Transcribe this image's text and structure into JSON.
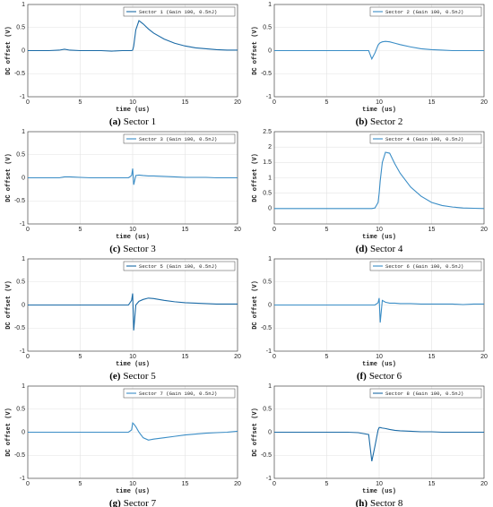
{
  "chart_data": [
    {
      "type": "line",
      "caption_label": "(a)",
      "caption": "Sector 1",
      "x_label": "time (us)",
      "y_label": "DC offset (V)",
      "grid": true,
      "legend": "upper right",
      "xlim": [
        0,
        20
      ],
      "xticks": [
        0,
        5,
        10,
        15,
        20
      ],
      "ylim": [
        -1,
        1
      ],
      "yticks": [
        -1,
        -0.5,
        0,
        0.5,
        1
      ],
      "x": [
        0,
        1,
        2,
        3,
        3.5,
        4,
        5,
        6,
        7,
        8,
        9,
        9.3,
        9.6,
        9.9,
        10,
        10.1,
        10.3,
        10.6,
        11,
        11.5,
        12,
        13,
        14,
        15,
        16,
        17,
        18,
        19,
        20
      ],
      "series": [
        {
          "name": "Sector 1 (Gain 100, 0.5nJ)",
          "color": "#1a6aa6",
          "values": [
            0,
            0,
            0,
            0.01,
            0.03,
            0.01,
            0,
            0,
            0,
            -0.01,
            0,
            0,
            0,
            0,
            0.01,
            0.1,
            0.45,
            0.65,
            0.58,
            0.47,
            0.38,
            0.25,
            0.16,
            0.1,
            0.06,
            0.04,
            0.02,
            0.01,
            0.01
          ]
        }
      ]
    },
    {
      "type": "line",
      "caption_label": "(b)",
      "caption": "Sector 2",
      "x_label": "time (us)",
      "y_label": "DC offset (V)",
      "grid": true,
      "legend": "upper right",
      "xlim": [
        0,
        20
      ],
      "xticks": [
        0,
        5,
        10,
        15,
        20
      ],
      "ylim": [
        -1,
        1
      ],
      "yticks": [
        -1,
        -0.5,
        0,
        0.5,
        1
      ],
      "x": [
        0,
        1,
        2,
        3,
        3.5,
        4,
        5,
        6,
        7,
        8,
        9,
        9.3,
        9.6,
        9.9,
        10,
        10.1,
        10.3,
        10.6,
        11,
        11.5,
        12,
        13,
        14,
        15,
        16,
        17,
        18,
        19,
        20
      ],
      "series": [
        {
          "name": "Sector 2 (Gain 100, 0.5nJ)",
          "color": "#3a8dc6",
          "values": [
            0,
            0,
            0,
            0,
            0,
            0,
            0,
            0,
            0,
            0,
            0,
            -0.18,
            -0.05,
            0.12,
            0.15,
            0.17,
            0.19,
            0.2,
            0.19,
            0.16,
            0.13,
            0.08,
            0.04,
            0.02,
            0.01,
            0,
            0,
            0,
            0
          ]
        }
      ]
    },
    {
      "type": "line",
      "caption_label": "(c)",
      "caption": "Sector 3",
      "x_label": "time (us)",
      "y_label": "DC offset (V)",
      "grid": true,
      "legend": "upper right",
      "xlim": [
        0,
        20
      ],
      "xticks": [
        0,
        5,
        10,
        15,
        20
      ],
      "ylim": [
        -1,
        1
      ],
      "yticks": [
        -1,
        -0.5,
        0,
        0.5,
        1
      ],
      "x": [
        0,
        1,
        2,
        3,
        3.5,
        4,
        5,
        6,
        7,
        8,
        9,
        9.3,
        9.6,
        9.9,
        10,
        10.1,
        10.3,
        10.6,
        11,
        11.5,
        12,
        13,
        14,
        15,
        16,
        17,
        18,
        19,
        20
      ],
      "series": [
        {
          "name": "Sector 3 (Gain 100, 0.5nJ)",
          "color": "#3a8dc6",
          "values": [
            0,
            0,
            0,
            0,
            0.02,
            0.02,
            0.01,
            0,
            0,
            0,
            0,
            0,
            0,
            0.05,
            0.2,
            -0.15,
            0.05,
            0.06,
            0.05,
            0.04,
            0.04,
            0.03,
            0.02,
            0.01,
            0.01,
            0.01,
            0,
            0,
            0
          ]
        }
      ]
    },
    {
      "type": "line",
      "caption_label": "(d)",
      "caption": "Sector 4",
      "x_label": "time (us)",
      "y_label": "DC offset (V)",
      "grid": true,
      "legend": "upper right",
      "xlim": [
        0,
        20
      ],
      "xticks": [
        0,
        5,
        10,
        15,
        20
      ],
      "ylim": [
        -0.5,
        2.5
      ],
      "yticks": [
        0,
        0.5,
        1,
        1.5,
        2,
        2.5
      ],
      "x": [
        0,
        1,
        2,
        3,
        3.5,
        4,
        5,
        6,
        7,
        8,
        9,
        9.3,
        9.6,
        9.9,
        10,
        10.1,
        10.3,
        10.6,
        11,
        11.5,
        12,
        13,
        14,
        15,
        16,
        17,
        18,
        19,
        20
      ],
      "series": [
        {
          "name": "Sector 4 (Gain 100, 0.5nJ)",
          "color": "#3a8dc6",
          "values": [
            0,
            0,
            0,
            0,
            0,
            0,
            0,
            0,
            0,
            0,
            0,
            0,
            0.02,
            0.2,
            0.5,
            0.9,
            1.5,
            1.83,
            1.8,
            1.45,
            1.15,
            0.7,
            0.4,
            0.2,
            0.1,
            0.05,
            0.02,
            0.01,
            0
          ]
        }
      ]
    },
    {
      "type": "line",
      "caption_label": "(e)",
      "caption": "Sector 5",
      "x_label": "time (us)",
      "y_label": "DC offset (V)",
      "grid": true,
      "legend": "upper right",
      "xlim": [
        0,
        20
      ],
      "xticks": [
        0,
        5,
        10,
        15,
        20
      ],
      "ylim": [
        -1,
        1
      ],
      "yticks": [
        -1,
        -0.5,
        0,
        0.5,
        1
      ],
      "x": [
        0,
        1,
        2,
        3,
        3.5,
        4,
        5,
        6,
        7,
        8,
        9,
        9.3,
        9.6,
        9.9,
        10,
        10.1,
        10.3,
        10.6,
        11,
        11.5,
        12,
        13,
        14,
        15,
        16,
        17,
        18,
        19,
        20
      ],
      "series": [
        {
          "name": "Sector 5 (Gain 100, 0.5nJ)",
          "color": "#1a6aa6",
          "values": [
            0,
            0,
            0,
            0,
            0,
            0,
            0,
            0,
            0,
            0,
            0,
            0,
            0,
            0.1,
            0.25,
            -0.55,
            0,
            0.08,
            0.12,
            0.15,
            0.14,
            0.1,
            0.07,
            0.05,
            0.04,
            0.03,
            0.02,
            0.02,
            0.02
          ]
        }
      ]
    },
    {
      "type": "line",
      "caption_label": "(f)",
      "caption": "Sector 6",
      "x_label": "time (us)",
      "y_label": "DC offset (V)",
      "grid": true,
      "legend": "upper right",
      "xlim": [
        0,
        20
      ],
      "xticks": [
        0,
        5,
        10,
        15,
        20
      ],
      "ylim": [
        -1,
        1
      ],
      "yticks": [
        -1,
        -0.5,
        0,
        0.5,
        1
      ],
      "x": [
        0,
        1,
        2,
        3,
        3.5,
        4,
        5,
        6,
        7,
        8,
        9,
        9.3,
        9.6,
        9.9,
        10,
        10.1,
        10.3,
        10.6,
        11,
        11.5,
        12,
        13,
        14,
        15,
        16,
        17,
        18,
        19,
        20
      ],
      "series": [
        {
          "name": "Sector 6 (Gain 100, 0.5nJ)",
          "color": "#3a8dc6",
          "values": [
            0,
            0,
            0,
            0,
            0,
            0,
            0,
            0,
            0,
            0,
            0,
            0,
            0,
            0.05,
            0.15,
            -0.38,
            0.1,
            0.06,
            0.04,
            0.04,
            0.03,
            0.03,
            0.02,
            0.02,
            0.02,
            0.02,
            0.01,
            0.02,
            0.02
          ]
        }
      ]
    },
    {
      "type": "line",
      "caption_label": "(g)",
      "caption": "Sector 7",
      "x_label": "time (us)",
      "y_label": "DC offset (V)",
      "grid": true,
      "legend": "upper right",
      "xlim": [
        0,
        20
      ],
      "xticks": [
        0,
        5,
        10,
        15,
        20
      ],
      "ylim": [
        -1,
        1
      ],
      "yticks": [
        -1,
        -0.5,
        0,
        0.5,
        1
      ],
      "x": [
        0,
        1,
        2,
        3,
        3.5,
        4,
        5,
        6,
        7,
        8,
        9,
        9.3,
        9.6,
        9.9,
        10,
        10.1,
        10.3,
        10.6,
        11,
        11.5,
        12,
        13,
        14,
        15,
        16,
        17,
        18,
        19,
        20
      ],
      "series": [
        {
          "name": "Sector 7 (Gain 100, 0.5nJ)",
          "color": "#3a8dc6",
          "values": [
            0,
            0,
            0,
            0,
            0,
            0,
            0,
            0,
            0,
            0,
            0,
            0,
            0,
            0.05,
            0.2,
            0.18,
            0.12,
            0,
            -0.12,
            -0.17,
            -0.15,
            -0.12,
            -0.09,
            -0.06,
            -0.04,
            -0.02,
            -0.01,
            0,
            0.02
          ]
        }
      ]
    },
    {
      "type": "line",
      "caption_label": "(h)",
      "caption": "Sector 8",
      "x_label": "time (us)",
      "y_label": "DC offset (V)",
      "grid": true,
      "legend": "upper right",
      "xlim": [
        0,
        20
      ],
      "xticks": [
        0,
        5,
        10,
        15,
        20
      ],
      "ylim": [
        -1,
        1
      ],
      "yticks": [
        -1,
        -0.5,
        0,
        0.5,
        1
      ],
      "x": [
        0,
        1,
        2,
        3,
        3.5,
        4,
        5,
        6,
        7,
        8,
        9,
        9.3,
        9.6,
        9.9,
        10,
        10.1,
        10.3,
        10.6,
        11,
        11.5,
        12,
        13,
        14,
        15,
        16,
        17,
        18,
        19,
        20
      ],
      "series": [
        {
          "name": "Sector 8 (Gain 100, 0.5nJ)",
          "color": "#1a6aa6",
          "values": [
            0,
            0,
            0,
            0,
            0,
            0,
            0,
            0,
            0,
            -0.01,
            -0.05,
            -0.63,
            -0.3,
            0.05,
            0.1,
            0.1,
            0.09,
            0.08,
            0.06,
            0.04,
            0.03,
            0.02,
            0.01,
            0.01,
            0,
            0,
            0,
            0,
            0
          ]
        }
      ]
    }
  ]
}
